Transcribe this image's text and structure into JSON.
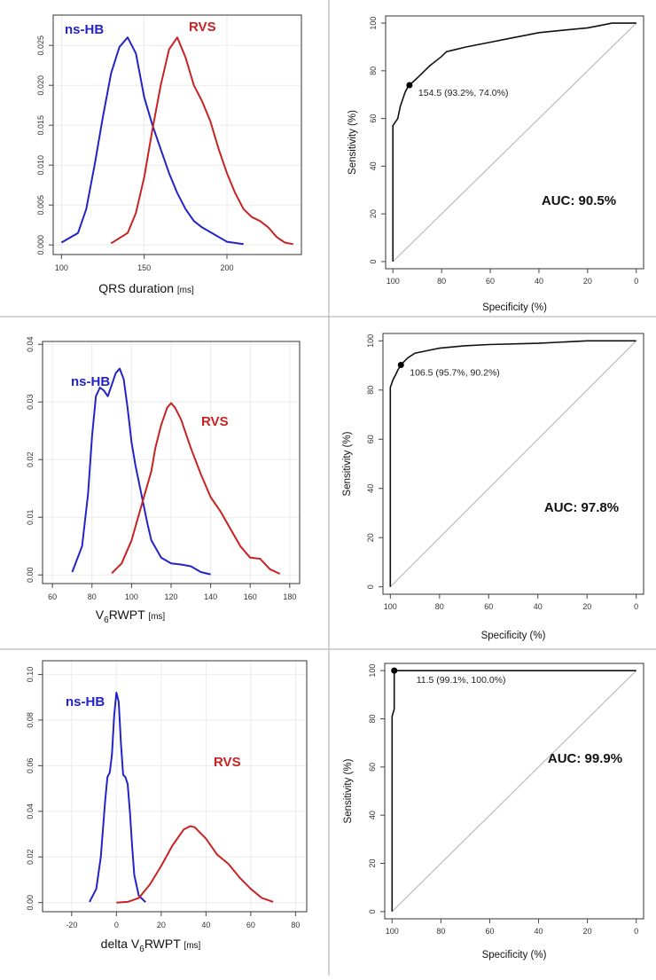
{
  "colors": {
    "ns_hb": "#2323c8",
    "rvs": "#c82323",
    "roc": "#111111",
    "diagonal": "#bdbdbd",
    "divider": "#aaaaaa"
  },
  "chart_data": [
    {
      "type": "line",
      "xlabel": "QRS duration",
      "xunit": "[ms]",
      "xlim": [
        95,
        245
      ],
      "ylim": [
        -0.0012,
        0.0288
      ],
      "xticks": [
        "100",
        "150",
        "200"
      ],
      "yticks": [
        "0.000",
        "0.005",
        "0.010",
        "0.015",
        "0.020",
        "0.025"
      ],
      "grid": true,
      "series": [
        {
          "name": "ns-HB",
          "x": [
            100,
            110,
            115,
            120,
            125,
            130,
            135,
            140,
            145,
            150,
            155,
            160,
            165,
            170,
            175,
            180,
            185,
            190,
            200,
            210
          ],
          "y": [
            0.0003,
            0.0015,
            0.0045,
            0.01,
            0.016,
            0.0215,
            0.0248,
            0.026,
            0.024,
            0.0185,
            0.015,
            0.012,
            0.009,
            0.0065,
            0.0045,
            0.003,
            0.0022,
            0.0016,
            0.0004,
            0.0001
          ]
        },
        {
          "name": "RVS",
          "x": [
            130,
            140,
            145,
            150,
            155,
            160,
            165,
            170,
            175,
            180,
            185,
            190,
            195,
            200,
            205,
            210,
            215,
            220,
            225,
            230,
            235,
            240
          ],
          "y": [
            0.0002,
            0.0015,
            0.004,
            0.0085,
            0.0145,
            0.02,
            0.0245,
            0.026,
            0.0235,
            0.02,
            0.018,
            0.0155,
            0.012,
            0.009,
            0.0065,
            0.0045,
            0.0035,
            0.003,
            0.0022,
            0.001,
            0.0003,
            0.0001
          ]
        }
      ]
    },
    {
      "type": "line",
      "xlabel": "Specificity (%)",
      "ylabel": "Sensitivity (%)",
      "xlim": [
        103,
        -3
      ],
      "ylim": [
        -3,
        103
      ],
      "xticks": [
        "100",
        "80",
        "60",
        "40",
        "20",
        "0"
      ],
      "yticks": [
        "0",
        "20",
        "40",
        "60",
        "80",
        "100"
      ],
      "auc": "AUC: 90.5%",
      "threshold": {
        "label": "154.5 (93.2%, 74.0%)",
        "specificity": 93.2,
        "sensitivity": 74.0
      },
      "roc": {
        "specificity": [
          100,
          100,
          98,
          97,
          96,
          95,
          94,
          93.2,
          90,
          85,
          80,
          78,
          70,
          60,
          50,
          40,
          30,
          20,
          15,
          10,
          5,
          0
        ],
        "sensitivity": [
          0,
          57,
          60,
          65,
          68,
          71,
          73,
          74,
          77,
          82,
          86,
          88,
          90,
          92,
          94,
          96,
          97,
          98,
          99,
          100,
          100,
          100
        ]
      }
    },
    {
      "type": "line",
      "xlabel": "V6RWPT",
      "xunit": "[ms]",
      "xlim": [
        55,
        185
      ],
      "ylim": [
        -0.0015,
        0.0405
      ],
      "xticks": [
        "60",
        "80",
        "100",
        "120",
        "140",
        "160",
        "180"
      ],
      "yticks": [
        "0.00",
        "0.01",
        "0.02",
        "0.03",
        "0.04"
      ],
      "grid": true,
      "series": [
        {
          "name": "ns-HB",
          "x": [
            70,
            75,
            78,
            80,
            82,
            84,
            86,
            88,
            90,
            92,
            94,
            96,
            98,
            100,
            102,
            105,
            108,
            110,
            115,
            120,
            125,
            130,
            135,
            140
          ],
          "y": [
            0.0005,
            0.005,
            0.014,
            0.024,
            0.031,
            0.0325,
            0.032,
            0.031,
            0.033,
            0.035,
            0.0358,
            0.034,
            0.029,
            0.023,
            0.019,
            0.014,
            0.009,
            0.006,
            0.003,
            0.002,
            0.0018,
            0.0015,
            0.0005,
            0.0001
          ]
        },
        {
          "name": "RVS",
          "x": [
            90,
            95,
            100,
            105,
            110,
            112,
            115,
            118,
            120,
            122,
            125,
            130,
            135,
            140,
            145,
            150,
            155,
            160,
            165,
            170,
            175
          ],
          "y": [
            0.0003,
            0.002,
            0.006,
            0.012,
            0.018,
            0.022,
            0.026,
            0.029,
            0.0298,
            0.029,
            0.027,
            0.022,
            0.0175,
            0.0135,
            0.011,
            0.008,
            0.005,
            0.003,
            0.0028,
            0.001,
            0.0002
          ]
        }
      ]
    },
    {
      "type": "line",
      "xlabel": "Specificity (%)",
      "ylabel": "Sensitivity (%)",
      "xlim": [
        103,
        -3
      ],
      "ylim": [
        -3,
        103
      ],
      "xticks": [
        "100",
        "80",
        "60",
        "40",
        "20",
        "0"
      ],
      "yticks": [
        "0",
        "20",
        "40",
        "60",
        "80",
        "100"
      ],
      "auc": "AUC: 97.8%",
      "threshold": {
        "label": "106.5 (95.7%, 90.2%)",
        "specificity": 95.7,
        "sensitivity": 90.2
      },
      "roc": {
        "specificity": [
          100,
          100,
          99,
          98,
          97,
          95.7,
          93,
          90,
          85,
          80,
          70,
          60,
          40,
          20,
          0
        ],
        "sensitivity": [
          0,
          81,
          84,
          86,
          88,
          90.2,
          93,
          95,
          96,
          97,
          98,
          98.5,
          99,
          100,
          100
        ]
      }
    },
    {
      "type": "line",
      "xlabel": "delta  V6RWPT",
      "xunit": "[ms]",
      "xlim": [
        -33,
        85
      ],
      "ylim": [
        -0.004,
        0.106
      ],
      "xticks": [
        "-20",
        "0",
        "20",
        "40",
        "60",
        "80"
      ],
      "yticks": [
        "0.00",
        "0.02",
        "0.04",
        "0.06",
        "0.08",
        "0.10"
      ],
      "grid": true,
      "series": [
        {
          "name": "ns-HB",
          "x": [
            -12,
            -9,
            -7,
            -5,
            -4,
            -3,
            -2,
            -1,
            0,
            1,
            2,
            3,
            4,
            5,
            6,
            7,
            8,
            10,
            13
          ],
          "y": [
            0.0003,
            0.006,
            0.02,
            0.045,
            0.055,
            0.057,
            0.065,
            0.082,
            0.092,
            0.088,
            0.07,
            0.056,
            0.055,
            0.052,
            0.04,
            0.025,
            0.012,
            0.003,
            0.0002
          ]
        },
        {
          "name": "RVS",
          "x": [
            0,
            5,
            10,
            15,
            20,
            25,
            30,
            33,
            35,
            40,
            45,
            50,
            55,
            60,
            65,
            70
          ],
          "y": [
            0,
            0.0003,
            0.002,
            0.008,
            0.016,
            0.025,
            0.032,
            0.0335,
            0.033,
            0.028,
            0.021,
            0.017,
            0.011,
            0.006,
            0.002,
            0.0003
          ]
        }
      ]
    },
    {
      "type": "line",
      "xlabel": "Specificity (%)",
      "ylabel": "Sensitivity (%)",
      "xlim": [
        103,
        -3
      ],
      "ylim": [
        -3,
        103
      ],
      "xticks": [
        "100",
        "80",
        "60",
        "40",
        "20",
        "0"
      ],
      "yticks": [
        "0",
        "20",
        "40",
        "60",
        "80",
        "100"
      ],
      "auc": "AUC: 99.9%",
      "threshold": {
        "label": "11.5 (99.1%, 100.0%)",
        "specificity": 99.1,
        "sensitivity": 100.0
      },
      "roc": {
        "specificity": [
          100,
          100,
          99.1,
          99.1,
          0
        ],
        "sensitivity": [
          0,
          81,
          84,
          100,
          100
        ]
      }
    }
  ]
}
